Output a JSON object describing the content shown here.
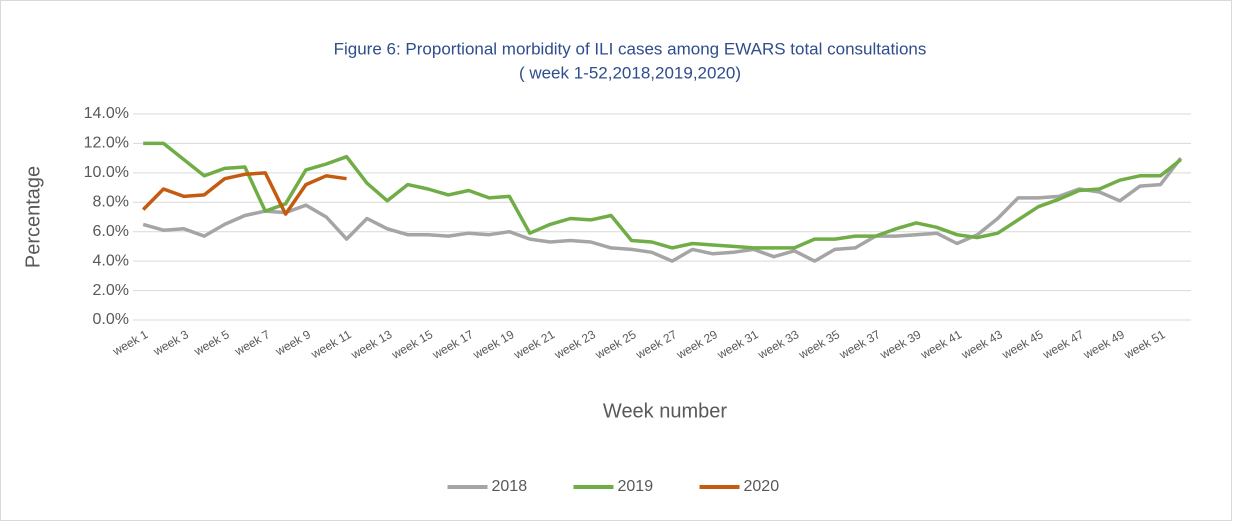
{
  "chart_data": {
    "type": "line",
    "title": [
      "Figure 6: Proportional morbidity  of ILI cases among EWARS total consultations",
      "( week 1-52,2018,2019,2020)"
    ],
    "x_label": "Week number",
    "y_label": "Percentage",
    "categories": [
      "week 1",
      null,
      "week 3",
      null,
      "week 5",
      null,
      "week 7",
      null,
      "week 9",
      null,
      "week 11",
      null,
      "week 13",
      null,
      "week 15",
      null,
      "week 17",
      null,
      "week 19",
      null,
      "week 21",
      null,
      "week 23",
      null,
      "week 25",
      null,
      "week 27",
      null,
      "week 29",
      null,
      "week 31",
      null,
      "week 33",
      null,
      "week 35",
      null,
      "week 37",
      null,
      "week 39",
      null,
      "week 41",
      null,
      "week 43",
      null,
      "week 45",
      null,
      "week 47",
      null,
      "week 49",
      null,
      "week 51",
      null
    ],
    "series": [
      {
        "name": "2018",
        "color": "#a5a5a5",
        "values": [
          6.5,
          6.1,
          6.2,
          5.7,
          6.5,
          7.1,
          7.4,
          7.3,
          7.8,
          7.0,
          5.5,
          6.9,
          6.2,
          5.8,
          5.8,
          5.7,
          5.9,
          5.8,
          6.0,
          5.5,
          5.3,
          5.4,
          5.3,
          4.9,
          4.8,
          4.6,
          4.0,
          4.8,
          4.5,
          4.6,
          4.8,
          4.3,
          4.7,
          4.0,
          4.8,
          4.9,
          5.7,
          5.7,
          5.8,
          5.9,
          5.2,
          5.8,
          6.9,
          8.3,
          8.3,
          8.4,
          8.9,
          8.7,
          8.1,
          9.1,
          9.2,
          11.0
        ]
      },
      {
        "name": "2019",
        "color": "#70ad47",
        "values": [
          12.0,
          12.0,
          10.9,
          9.8,
          10.3,
          10.4,
          7.4,
          7.9,
          10.2,
          10.6,
          11.1,
          9.3,
          8.1,
          9.2,
          8.9,
          8.5,
          8.8,
          8.3,
          8.4,
          5.9,
          6.5,
          6.9,
          6.8,
          7.1,
          5.4,
          5.3,
          4.9,
          5.2,
          5.1,
          5.0,
          4.9,
          4.9,
          4.9,
          5.5,
          5.5,
          5.7,
          5.7,
          6.2,
          6.6,
          6.3,
          5.8,
          5.6,
          5.9,
          6.8,
          7.7,
          8.2,
          8.8,
          8.9,
          9.5,
          9.8,
          9.8,
          10.9
        ]
      },
      {
        "name": "2020",
        "color": "#c55a11",
        "values": [
          7.5,
          8.9,
          8.4,
          8.5,
          9.6,
          9.9,
          10.0,
          7.2,
          9.2,
          9.8,
          9.6,
          null,
          null,
          null,
          null,
          null,
          null,
          null,
          null,
          null,
          null,
          null,
          null,
          null,
          null,
          null,
          null,
          null,
          null,
          null,
          null,
          null,
          null,
          null,
          null,
          null,
          null,
          null,
          null,
          null,
          null,
          null,
          null,
          null,
          null,
          null,
          null,
          null,
          null,
          null,
          null,
          null
        ]
      }
    ],
    "ylim": [
      0,
      14
    ],
    "yticks": [
      {
        "value": 0,
        "label": "0.0%"
      },
      {
        "value": 2,
        "label": "2.0%"
      },
      {
        "value": 4,
        "label": "4.0%"
      },
      {
        "value": 6,
        "label": "6.0%"
      },
      {
        "value": 8,
        "label": "8.0%"
      },
      {
        "value": 10,
        "label": "10.0%"
      },
      {
        "value": 12,
        "label": "12.0%"
      },
      {
        "value": 14,
        "label": "14.0%"
      }
    ],
    "grid": true,
    "legend": "bottom"
  }
}
